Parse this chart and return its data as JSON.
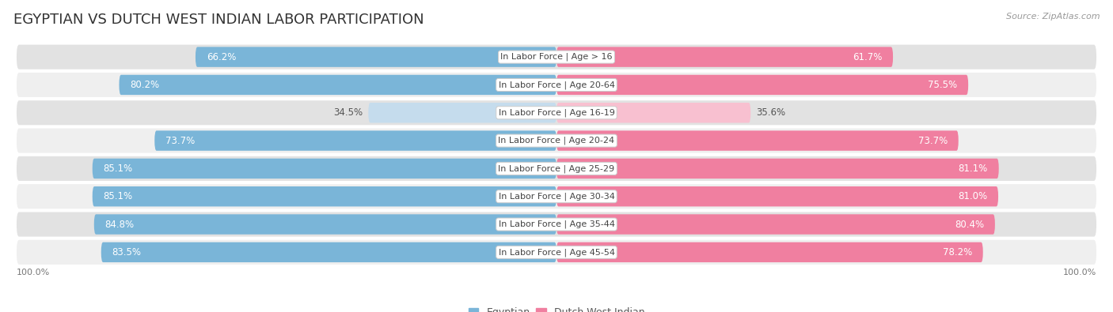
{
  "title": "EGYPTIAN VS DUTCH WEST INDIAN LABOR PARTICIPATION",
  "source": "Source: ZipAtlas.com",
  "categories": [
    "In Labor Force | Age > 16",
    "In Labor Force | Age 20-64",
    "In Labor Force | Age 16-19",
    "In Labor Force | Age 20-24",
    "In Labor Force | Age 25-29",
    "In Labor Force | Age 30-34",
    "In Labor Force | Age 35-44",
    "In Labor Force | Age 45-54"
  ],
  "egyptian_values": [
    66.2,
    80.2,
    34.5,
    73.7,
    85.1,
    85.1,
    84.8,
    83.5
  ],
  "dutch_values": [
    61.7,
    75.5,
    35.6,
    73.7,
    81.1,
    81.0,
    80.4,
    78.2
  ],
  "egyptian_color": "#7ab5d8",
  "dutch_color": "#f07fa0",
  "egyptian_color_light": "#c5dced",
  "dutch_color_light": "#f8c0d0",
  "row_bg_color_dark": "#e2e2e2",
  "row_bg_color_light": "#efefef",
  "max_value": 100.0,
  "title_fontsize": 13,
  "bar_label_fontsize": 8.5,
  "cat_label_fontsize": 8.0,
  "tick_fontsize": 8,
  "legend_fontsize": 9,
  "background_color": "#ffffff",
  "axis_label_left": "100.0%",
  "axis_label_right": "100.0%"
}
